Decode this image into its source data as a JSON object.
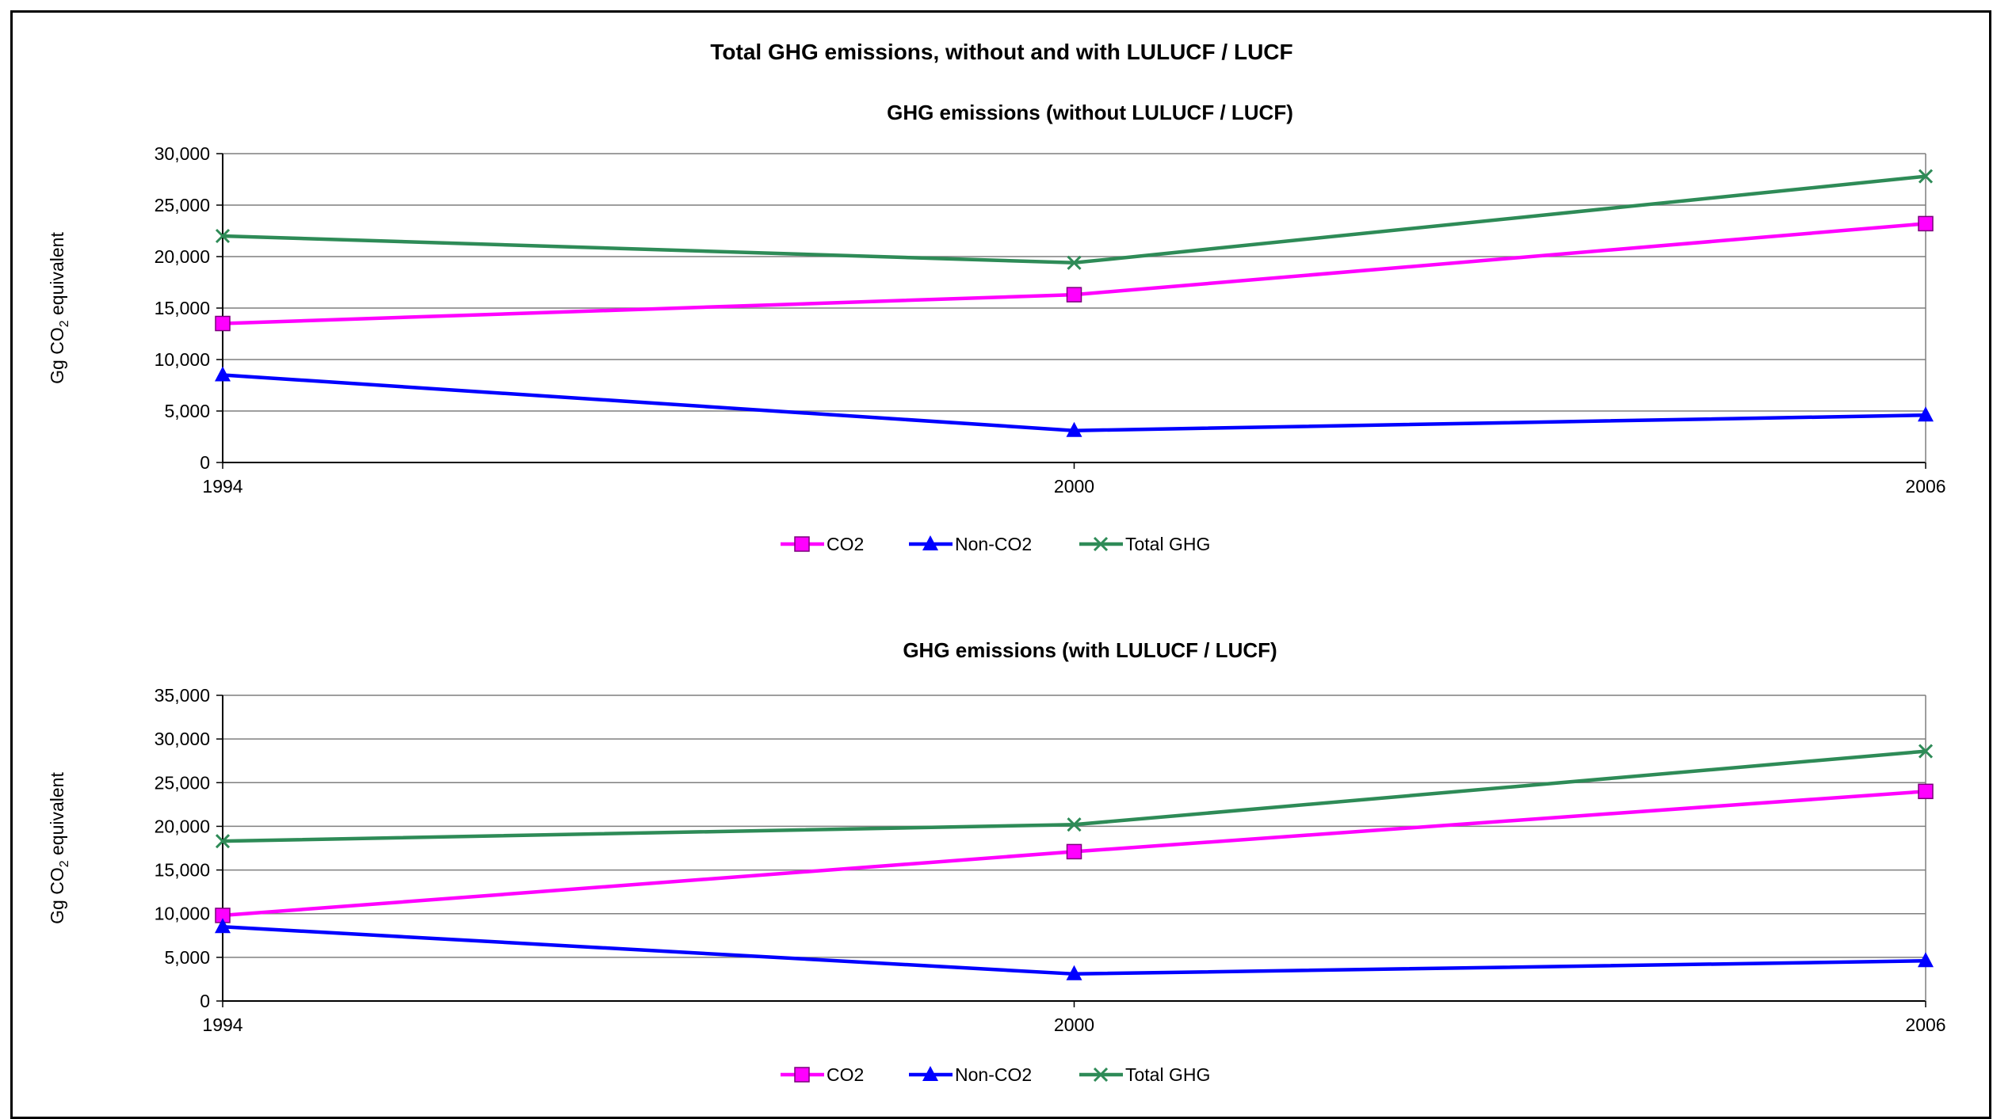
{
  "title": "Total GHG emissions, without and with LULUCF / LUCF",
  "colors": {
    "co2": "#FF00FF",
    "nonco2": "#0000FF",
    "total": "#2E8B57",
    "grid": "#7f7f7f"
  },
  "chart_data": [
    {
      "type": "line",
      "title": "GHG emissions (without LULUCF / LUCF)",
      "ylabel_main": "Gg CO",
      "ylabel_sub": "2",
      "ylabel_rest": " equivalent",
      "categories": [
        "1994",
        "2000",
        "2006"
      ],
      "ylim": [
        0,
        30000
      ],
      "yticks": [
        "0",
        "5,000",
        "10,000",
        "15,000",
        "20,000",
        "25,000",
        "30,000"
      ],
      "grid": true,
      "legend": "bottom",
      "series": [
        {
          "name": "CO2",
          "marker": "square",
          "color": "#FF00FF",
          "values": [
            13500,
            16300,
            23200
          ]
        },
        {
          "name": "Non-CO2",
          "marker": "triangle",
          "color": "#0000FF",
          "values": [
            8500,
            3100,
            4600
          ]
        },
        {
          "name": "Total GHG",
          "marker": "x",
          "color": "#2E8B57",
          "values": [
            22000,
            19400,
            27800
          ]
        }
      ]
    },
    {
      "type": "line",
      "title": "GHG emissions (with LULUCF / LUCF)",
      "ylabel_main": "Gg CO",
      "ylabel_sub": "2",
      "ylabel_rest": " equivalent",
      "categories": [
        "1994",
        "2000",
        "2006"
      ],
      "ylim": [
        0,
        35000
      ],
      "yticks": [
        "0",
        "5,000",
        "10,000",
        "15,000",
        "20,000",
        "25,000",
        "30,000",
        "35,000"
      ],
      "grid": true,
      "legend": "bottom",
      "series": [
        {
          "name": "CO2",
          "marker": "square",
          "color": "#FF00FF",
          "values": [
            9800,
            17100,
            24000
          ]
        },
        {
          "name": "Non-CO2",
          "marker": "triangle",
          "color": "#0000FF",
          "values": [
            8500,
            3100,
            4600
          ]
        },
        {
          "name": "Total GHG",
          "marker": "x",
          "color": "#2E8B57",
          "values": [
            18300,
            20200,
            28600
          ]
        }
      ]
    }
  ]
}
